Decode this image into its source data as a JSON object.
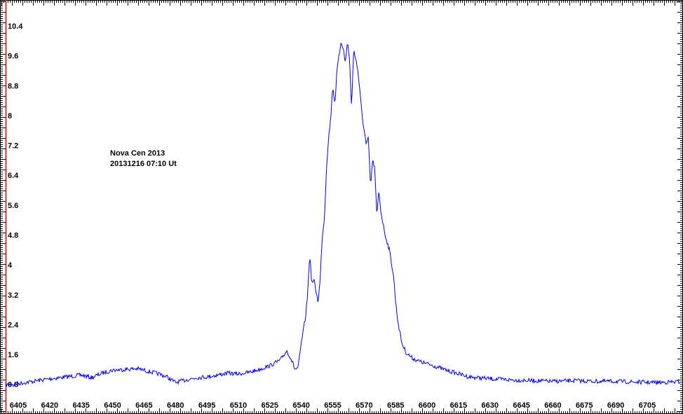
{
  "chart_data": {
    "type": "line",
    "title": "",
    "xlabel": "",
    "ylabel": "",
    "annotation": [
      "Nova Cen 2013",
      "20131216  07:10 Ut"
    ],
    "xlim": [
      6399,
      6721
    ],
    "ylim": [
      0.7,
      10.7
    ],
    "x_ticks": [
      "6405",
      "6420",
      "6435",
      "6450",
      "6465",
      "6480",
      "6495",
      "6510",
      "6525",
      "6540",
      "6555",
      "6570",
      "6585",
      "6600",
      "6615",
      "6630",
      "6645",
      "6660",
      "6675",
      "6690",
      "6705"
    ],
    "y_ticks": [
      "10.4",
      "9.6",
      "8.8",
      "8",
      "7.2",
      "6.4",
      "5.6",
      "4.8",
      "4",
      "3.2",
      "2.4",
      "1.6",
      "0.8"
    ],
    "grid": false,
    "colors": {
      "series": "#0000ff",
      "y_axis": "#cc0000",
      "frame": "#000000"
    },
    "series": [
      {
        "x": [
          6399,
          6405,
          6412,
          6420,
          6428,
          6435,
          6440,
          6445,
          6450,
          6456,
          6462,
          6467,
          6472,
          6476,
          6480,
          6485,
          6490,
          6495,
          6500,
          6505,
          6510,
          6515,
          6520,
          6525,
          6530,
          6533,
          6535,
          6537,
          6538.5,
          6540,
          6542,
          6543,
          6544,
          6545,
          6546,
          6547,
          6548,
          6549,
          6550,
          6551,
          6552,
          6553,
          6554,
          6555,
          6556,
          6557,
          6558,
          6559,
          6560,
          6561,
          6562,
          6563,
          6564,
          6565,
          6566,
          6567,
          6568,
          6569,
          6570,
          6571,
          6572,
          6573,
          6574,
          6575,
          6576,
          6577,
          6578,
          6580,
          6582,
          6584,
          6585,
          6586,
          6587,
          6588,
          6590,
          6593,
          6597,
          6603,
          6608,
          6614,
          6620,
          6630,
          6640,
          6650,
          6660,
          6670,
          6680,
          6690,
          6700,
          6710,
          6721
        ],
        "y": [
          0.78,
          0.82,
          0.88,
          0.95,
          1.0,
          1.05,
          0.98,
          1.1,
          1.18,
          1.2,
          1.22,
          1.15,
          1.08,
          1.0,
          0.85,
          0.92,
          0.98,
          1.0,
          1.05,
          1.1,
          1.08,
          1.12,
          1.2,
          1.3,
          1.45,
          1.7,
          1.5,
          1.2,
          1.25,
          1.9,
          2.6,
          3.2,
          4.3,
          3.5,
          3.6,
          3.3,
          3.0,
          3.6,
          4.8,
          5.2,
          6.6,
          7.4,
          7.9,
          8.8,
          8.3,
          9.2,
          9.6,
          10.0,
          9.8,
          9.4,
          10.0,
          9.5,
          8.2,
          9.8,
          9.5,
          9.2,
          8.6,
          8.0,
          7.6,
          7.2,
          7.4,
          6.1,
          6.8,
          6.6,
          5.3,
          6.0,
          5.4,
          4.8,
          4.4,
          3.7,
          3.0,
          2.5,
          2.2,
          1.9,
          1.65,
          1.5,
          1.4,
          1.3,
          1.2,
          1.1,
          1.0,
          0.95,
          0.92,
          0.9,
          0.88,
          0.9,
          0.88,
          0.88,
          0.86,
          0.85,
          0.87
        ]
      }
    ]
  }
}
